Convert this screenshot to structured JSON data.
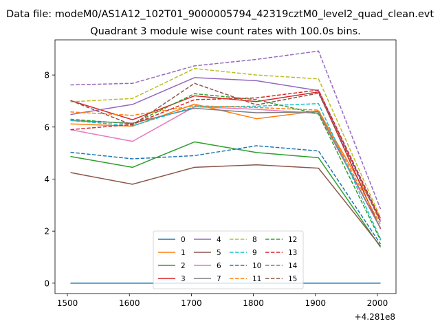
{
  "header": {
    "file_title": "Data file: modeM0/AS1A12_102T01_9000005794_42319cztM0_level2_quad_clean.evt"
  },
  "chart_data": {
    "type": "line",
    "title": "Quadrant 3 module wise count rates with 100.0s bins.",
    "xlabel": "",
    "ylabel": "",
    "x_offset_label": "+4.281e8",
    "x": [
      1505,
      1605,
      1705,
      1805,
      1905,
      2005
    ],
    "xlim": [
      1480,
      2030
    ],
    "ylim": [
      -0.4,
      9.35
    ],
    "xticks": [
      1500,
      1600,
      1700,
      1800,
      1900,
      2000
    ],
    "yticks": [
      0,
      2,
      4,
      6,
      8
    ],
    "grid": false,
    "legend": {
      "placement": "lower-center",
      "columns": 4
    },
    "series": [
      {
        "name": "0",
        "color": "#1f77b4",
        "dash": "solid",
        "values": [
          0.0,
          0.0,
          0.0,
          0.0,
          0.0,
          0.0
        ]
      },
      {
        "name": "1",
        "color": "#ff7f0e",
        "dash": "solid",
        "values": [
          6.12,
          6.03,
          6.88,
          6.32,
          6.62,
          2.5
        ]
      },
      {
        "name": "2",
        "color": "#2ca02c",
        "dash": "solid",
        "values": [
          4.87,
          4.45,
          5.43,
          5.02,
          4.82,
          1.38
        ]
      },
      {
        "name": "3",
        "color": "#d62728",
        "dash": "solid",
        "values": [
          7.02,
          6.28,
          7.2,
          6.98,
          7.35,
          2.08
        ]
      },
      {
        "name": "4",
        "color": "#9467bd",
        "dash": "solid",
        "values": [
          6.48,
          6.87,
          7.9,
          7.78,
          7.4,
          2.38
        ]
      },
      {
        "name": "5",
        "color": "#8c564b",
        "dash": "solid",
        "values": [
          4.25,
          3.8,
          4.45,
          4.55,
          4.42,
          1.42
        ]
      },
      {
        "name": "6",
        "color": "#e377c2",
        "dash": "solid",
        "values": [
          5.9,
          5.45,
          6.78,
          6.68,
          6.52,
          2.1
        ]
      },
      {
        "name": "7",
        "color": "#7f7f7f",
        "dash": "solid",
        "values": [
          6.25,
          6.15,
          6.72,
          6.55,
          6.58,
          2.12
        ]
      },
      {
        "name": "8",
        "color": "#bcbd22",
        "dash": "dashed",
        "values": [
          6.97,
          7.1,
          8.25,
          8.0,
          7.85,
          2.52
        ]
      },
      {
        "name": "9",
        "color": "#17becf",
        "dash": "dashed",
        "values": [
          6.25,
          6.05,
          6.78,
          6.8,
          6.9,
          1.7
        ]
      },
      {
        "name": "10",
        "color": "#1f77b4",
        "dash": "dashed",
        "values": [
          5.03,
          4.78,
          4.9,
          5.28,
          5.08,
          1.5
        ]
      },
      {
        "name": "11",
        "color": "#ff7f0e",
        "dash": "dashed",
        "values": [
          6.58,
          6.45,
          6.82,
          6.75,
          6.65,
          2.25
        ]
      },
      {
        "name": "12",
        "color": "#2ca02c",
        "dash": "dashed",
        "values": [
          6.3,
          6.12,
          7.28,
          7.05,
          6.5,
          1.65
        ]
      },
      {
        "name": "13",
        "color": "#d62728",
        "dash": "dashed",
        "values": [
          5.9,
          6.1,
          7.05,
          7.12,
          7.42,
          2.45
        ]
      },
      {
        "name": "14",
        "color": "#9467bd",
        "dash": "dashed",
        "values": [
          7.62,
          7.68,
          8.35,
          8.6,
          8.92,
          2.85
        ]
      },
      {
        "name": "15",
        "color": "#8c564b",
        "dash": "dashed",
        "values": [
          7.02,
          6.08,
          7.68,
          6.85,
          7.3,
          2.35
        ]
      }
    ]
  }
}
